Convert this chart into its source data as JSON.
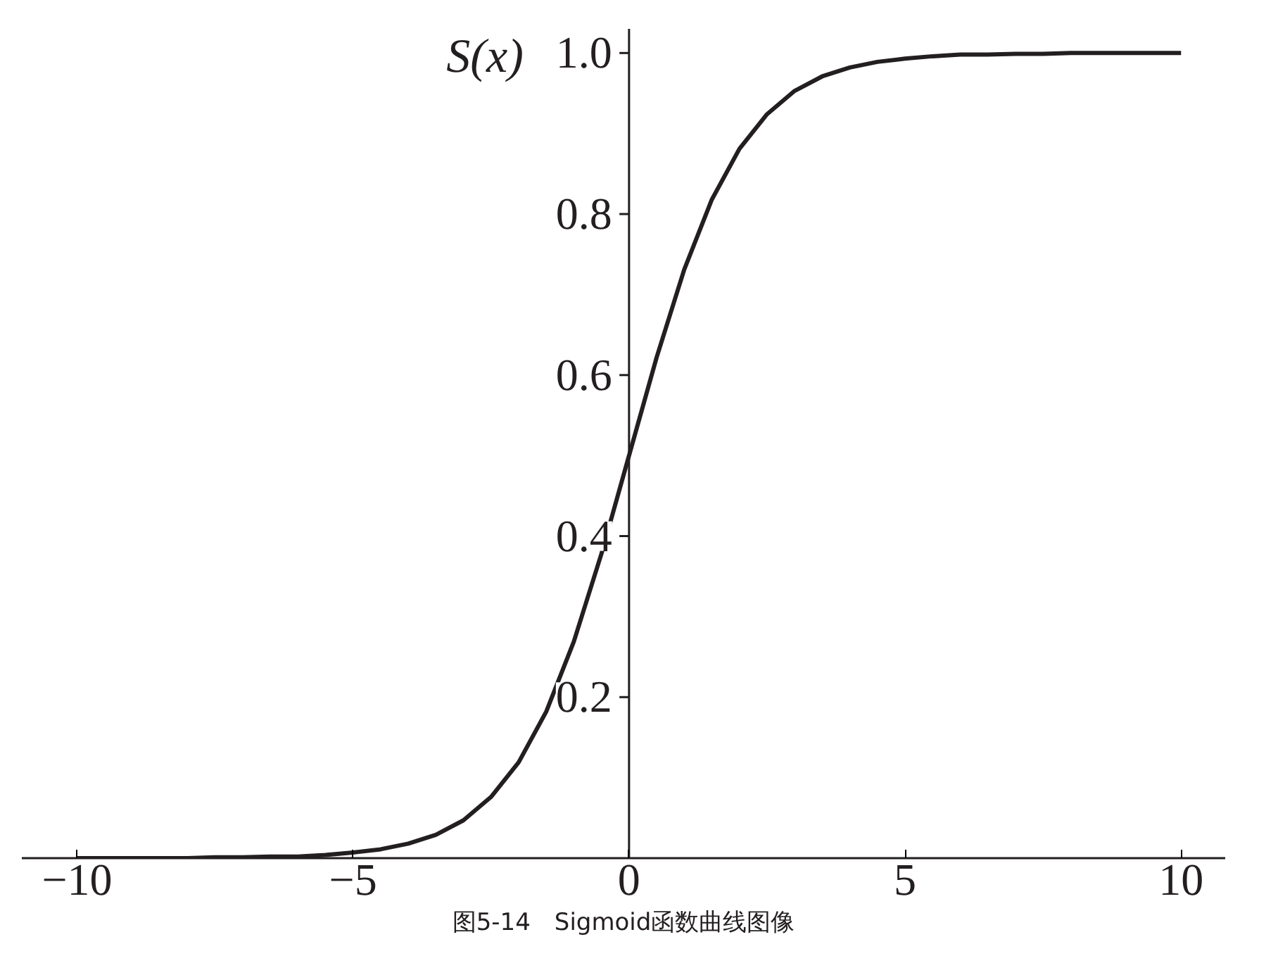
{
  "chart_data": {
    "type": "line",
    "ylabel": "S(x)",
    "annotations": [
      "图5-14　Sigmoid函数曲线图像"
    ],
    "x": [
      -10,
      -9.5,
      -9,
      -8.5,
      -8,
      -7.5,
      -7,
      -6.5,
      -6,
      -5.5,
      -5,
      -4.5,
      -4,
      -3.5,
      -3,
      -2.5,
      -2,
      -1.5,
      -1,
      -0.5,
      0,
      0.5,
      1,
      1.5,
      2,
      2.5,
      3,
      3.5,
      4,
      4.5,
      5,
      5.5,
      6,
      6.5,
      7,
      7.5,
      8,
      8.5,
      9,
      9.5,
      10
    ],
    "series": [
      {
        "color": "#231f20",
        "values": [
          0.0,
          0.0,
          0.0,
          0.0,
          0.0,
          0.001,
          0.001,
          0.002,
          0.002,
          0.004,
          0.007,
          0.011,
          0.018,
          0.029,
          0.047,
          0.076,
          0.119,
          0.182,
          0.269,
          0.378,
          0.5,
          0.622,
          0.731,
          0.818,
          0.881,
          0.924,
          0.953,
          0.971,
          0.982,
          0.989,
          0.993,
          0.996,
          0.998,
          0.998,
          0.999,
          0.999,
          1.0,
          1.0,
          1.0,
          1.0,
          1.0
        ]
      }
    ],
    "xlim": [
      -11,
      10.8
    ],
    "ylim": [
      0,
      1.03
    ],
    "xticks": [
      {
        "value": -10,
        "label": "−10"
      },
      {
        "value": -5,
        "label": "−5"
      },
      0,
      5,
      10
    ],
    "yticks": [
      0.2,
      0.4,
      0.6,
      0.8,
      {
        "value": 1,
        "label": "1.0"
      }
    ],
    "grid": false,
    "marker": "none",
    "line_style": "solid"
  }
}
